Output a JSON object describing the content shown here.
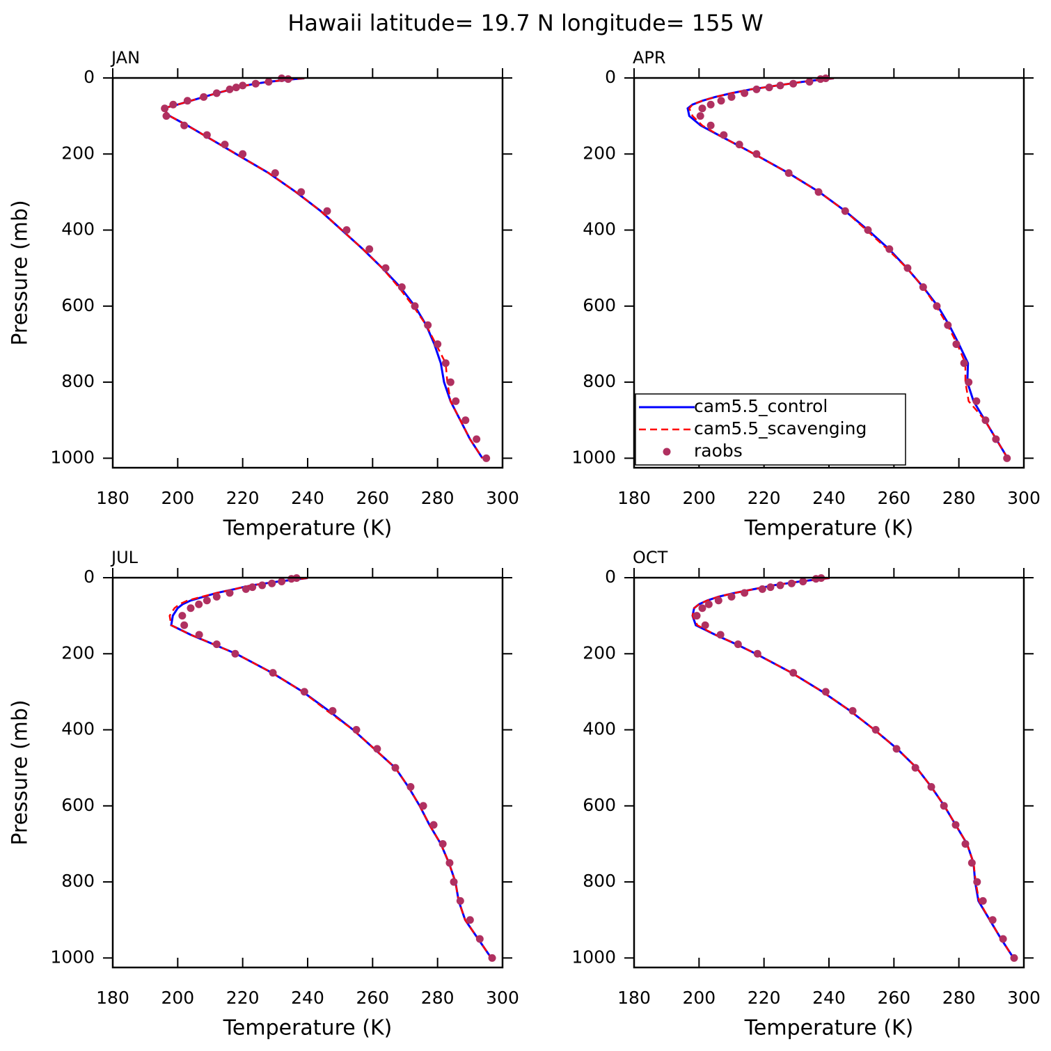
{
  "title": "Hawaii  latitude= 19.7 N longitude= 155 W",
  "chart_data": [
    {
      "type": "profile",
      "title": "JAN",
      "xlabel": "Temperature (K)",
      "ylabel": "Pressure (mb)",
      "xlim": [
        180,
        300
      ],
      "ylim": [
        1025,
        0
      ],
      "xticks": [
        180,
        200,
        220,
        240,
        260,
        280,
        300
      ],
      "yticks": [
        0,
        200,
        400,
        600,
        800,
        1000
      ],
      "pressure": [
        1,
        3,
        10,
        15,
        20,
        25,
        30,
        40,
        50,
        60,
        70,
        80,
        100,
        125,
        150,
        175,
        200,
        250,
        300,
        350,
        400,
        450,
        500,
        550,
        600,
        650,
        700,
        750,
        800,
        850,
        900,
        950,
        1000
      ],
      "series": [
        {
          "color": "#0000ff",
          "style": "solid",
          "values": [
            239,
            236,
            228,
            224,
            221,
            218.5,
            216.5,
            212,
            208,
            204,
            200,
            195.5,
            197.5,
            203,
            208,
            213,
            218,
            228,
            236.4,
            244,
            250.5,
            257,
            263,
            268.5,
            273,
            276.5,
            279,
            281,
            282,
            284,
            287,
            290,
            293.8
          ]
        },
        {
          "color": "#ff0000",
          "style": "dashed",
          "values": [
            239,
            236,
            228,
            224,
            221,
            218.5,
            216.5,
            212,
            208,
            204,
            200,
            195.5,
            197.5,
            203,
            208,
            213,
            218,
            228,
            236.4,
            244,
            250.5,
            257,
            263,
            268,
            272.5,
            276.5,
            279.5,
            282.5,
            283,
            284,
            287,
            290,
            293.8
          ]
        },
        {
          "color": "#b03060",
          "style": "dots",
          "values": [
            232,
            234,
            228,
            224,
            220,
            218,
            216,
            212,
            208,
            203,
            198.6,
            196,
            196.5,
            202,
            209,
            214.5,
            220,
            230,
            238,
            246,
            252,
            259,
            264,
            269,
            273,
            277,
            280,
            282.5,
            284,
            285.6,
            288.6,
            292,
            295
          ]
        }
      ]
    },
    {
      "type": "profile",
      "title": "APR",
      "xlabel": "Temperature (K)",
      "xlim": [
        180,
        300
      ],
      "ylim": [
        1025,
        0
      ],
      "xticks": [
        180,
        200,
        220,
        240,
        260,
        280,
        300
      ],
      "yticks": [
        0,
        200,
        400,
        600,
        800,
        1000
      ],
      "pressure": [
        1,
        3,
        10,
        15,
        20,
        25,
        30,
        40,
        50,
        60,
        70,
        80,
        100,
        125,
        150,
        175,
        200,
        250,
        300,
        350,
        400,
        450,
        500,
        550,
        600,
        650,
        700,
        750,
        800,
        850,
        900,
        950,
        1000
      ],
      "legend": "lower left",
      "series": [
        {
          "name": "cam5.5_control",
          "color": "#0000ff",
          "style": "solid",
          "values": [
            241.5,
            239,
            232,
            228,
            224,
            220,
            216,
            210,
            205,
            201,
            198,
            196.5,
            197,
            200.5,
            206,
            211.5,
            217,
            227.5,
            237,
            245,
            252,
            258.5,
            264,
            269,
            273.5,
            277,
            280,
            282.8,
            282.6,
            284.5,
            288,
            291.5,
            295
          ]
        },
        {
          "name": "cam5.5_scavenging",
          "color": "#ff0000",
          "style": "dashed",
          "values": [
            241.5,
            239,
            232,
            228,
            224,
            220,
            216,
            210,
            205,
            201,
            198,
            197,
            198,
            201,
            206,
            211.5,
            217,
            227.5,
            237,
            245,
            251.5,
            258,
            264,
            269,
            273,
            276.5,
            279.5,
            282,
            282,
            283,
            288,
            291.5,
            295
          ]
        },
        {
          "name": "raobs",
          "color": "#b03060",
          "style": "dots",
          "values": [
            239,
            237.4,
            234,
            229,
            225,
            221.6,
            217.7,
            214,
            210,
            206.8,
            203.6,
            201,
            200.4,
            203.6,
            207.6,
            212.4,
            217.7,
            227.6,
            236.8,
            245,
            252,
            258.6,
            264.2,
            269,
            273.2,
            276.6,
            279.2,
            281.6,
            283,
            285.4,
            288.2,
            291.4,
            294.8
          ]
        }
      ]
    },
    {
      "type": "profile",
      "title": "JUL",
      "xlabel": "Temperature (K)",
      "ylabel": "Pressure (mb)",
      "xlim": [
        180,
        300
      ],
      "ylim": [
        1025,
        0
      ],
      "xticks": [
        180,
        200,
        220,
        240,
        260,
        280,
        300
      ],
      "yticks": [
        0,
        200,
        400,
        600,
        800,
        1000
      ],
      "pressure": [
        1,
        3,
        10,
        15,
        20,
        25,
        30,
        40,
        50,
        60,
        70,
        80,
        100,
        125,
        150,
        175,
        200,
        250,
        300,
        350,
        400,
        450,
        500,
        550,
        600,
        650,
        700,
        750,
        800,
        850,
        900,
        950,
        1000
      ],
      "series": [
        {
          "color": "#0000ff",
          "style": "solid",
          "values": [
            240,
            238,
            231,
            227,
            223,
            220,
            217.5,
            212,
            208,
            204,
            201.5,
            200,
            198.5,
            198,
            204,
            211,
            218,
            229,
            238.5,
            246.5,
            254,
            260.5,
            267,
            271,
            274.5,
            277.5,
            281,
            283.5,
            285.5,
            286.5,
            288.5,
            292.5,
            296.5
          ]
        },
        {
          "color": "#ff0000",
          "style": "dashed",
          "values": [
            240,
            238,
            231,
            227,
            223,
            220,
            217.5,
            212,
            207.5,
            203,
            200.5,
            199,
            197.5,
            198,
            204,
            211,
            218,
            229,
            238.5,
            246,
            254,
            260.5,
            267,
            271,
            274.5,
            277.5,
            281,
            283.5,
            285.5,
            286.5,
            288.5,
            292.5,
            296.5
          ]
        },
        {
          "color": "#b03060",
          "style": "dots",
          "values": [
            236.6,
            235,
            232,
            229,
            226,
            223,
            221,
            216,
            212,
            209,
            206.5,
            204,
            201.4,
            202,
            206.6,
            212,
            217.7,
            229.3,
            239,
            247.7,
            255,
            261.4,
            267,
            271.7,
            275.6,
            278.8,
            281.6,
            283.7,
            285,
            287,
            290,
            293,
            296.8
          ]
        }
      ]
    },
    {
      "type": "profile",
      "title": "OCT",
      "xlabel": "Temperature (K)",
      "xlim": [
        180,
        300
      ],
      "ylim": [
        1025,
        0
      ],
      "xticks": [
        180,
        200,
        220,
        240,
        260,
        280,
        300
      ],
      "yticks": [
        0,
        200,
        400,
        600,
        800,
        1000
      ],
      "pressure": [
        1,
        3,
        10,
        15,
        20,
        25,
        30,
        40,
        50,
        60,
        70,
        80,
        100,
        125,
        150,
        175,
        200,
        250,
        300,
        350,
        400,
        450,
        500,
        550,
        600,
        650,
        700,
        750,
        800,
        850,
        900,
        950,
        1000
      ],
      "series": [
        {
          "color": "#0000ff",
          "style": "solid",
          "values": [
            240.2,
            238,
            231,
            227,
            223,
            220,
            217,
            211,
            206,
            202.5,
            200,
            198.5,
            198,
            199,
            205,
            211.5,
            217.5,
            228.5,
            238,
            246.5,
            254,
            261,
            267,
            271.5,
            275.5,
            279,
            282.5,
            284.5,
            285,
            286,
            289.5,
            293,
            296.8
          ]
        },
        {
          "color": "#ff0000",
          "style": "dashed",
          "values": [
            240.2,
            238,
            231,
            227,
            223,
            220,
            217,
            211,
            206,
            202.5,
            200,
            198.5,
            198,
            199.5,
            205,
            211.5,
            217.5,
            228.5,
            238,
            246.5,
            254,
            261,
            267,
            271.5,
            275.5,
            279,
            282.5,
            284.5,
            285.2,
            286.2,
            289.5,
            293,
            296.8
          ]
        },
        {
          "color": "#b03060",
          "style": "dots",
          "values": [
            237.6,
            236,
            232,
            228.5,
            225,
            222,
            219.5,
            214,
            210,
            206,
            203,
            201,
            199.3,
            201.9,
            206.6,
            212,
            218,
            229,
            239,
            247.3,
            254.4,
            260.8,
            266.6,
            271.5,
            275.4,
            279,
            282,
            284,
            285.6,
            287.4,
            290.4,
            293.6,
            297
          ]
        }
      ]
    }
  ]
}
